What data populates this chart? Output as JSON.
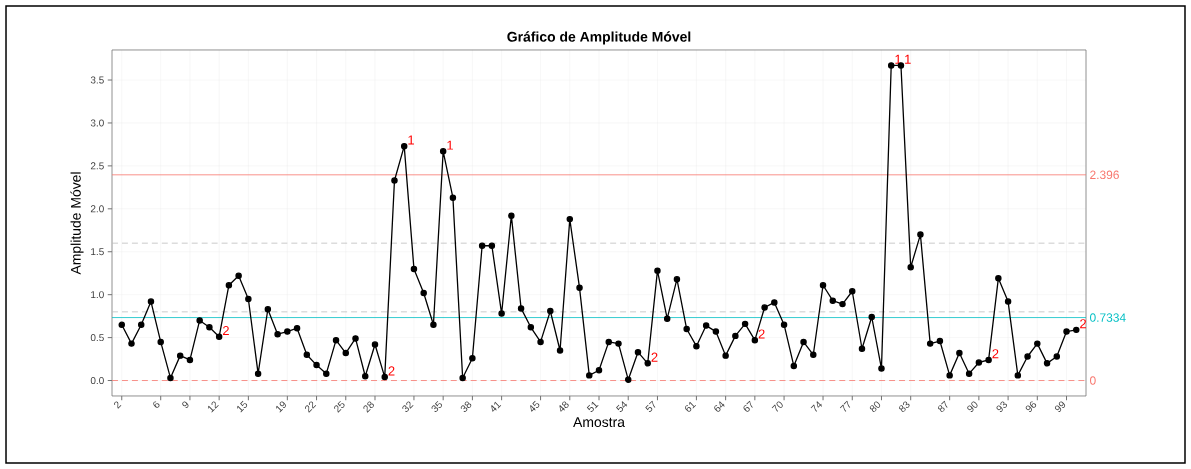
{
  "chart_data": {
    "type": "line",
    "title": "Gráfico de Amplitude Móvel",
    "xlabel": "Amostra",
    "ylabel": "Amplitude Móvel",
    "x": [
      2,
      3,
      4,
      5,
      6,
      7,
      8,
      9,
      10,
      11,
      12,
      13,
      14,
      15,
      16,
      17,
      18,
      19,
      20,
      21,
      22,
      23,
      24,
      25,
      26,
      27,
      28,
      29,
      30,
      31,
      32,
      33,
      34,
      35,
      36,
      37,
      38,
      39,
      40,
      41,
      42,
      43,
      44,
      45,
      46,
      47,
      48,
      49,
      50,
      51,
      52,
      53,
      54,
      55,
      56,
      57,
      58,
      59,
      60,
      61,
      62,
      63,
      64,
      65,
      66,
      67,
      68,
      69,
      70,
      71,
      72,
      73,
      74,
      75,
      76,
      77,
      78,
      79,
      80,
      81,
      82,
      83,
      84,
      85,
      86,
      87,
      88,
      89,
      90,
      91,
      92,
      93,
      94,
      95,
      96,
      97,
      98,
      99,
      100
    ],
    "series": [
      {
        "color": "#000000",
        "values": [
          0.65,
          0.43,
          0.65,
          0.92,
          0.45,
          0.03,
          0.29,
          0.24,
          0.7,
          0.62,
          0.51,
          1.11,
          1.22,
          0.95,
          0.08,
          0.83,
          0.54,
          0.57,
          0.61,
          0.3,
          0.18,
          0.08,
          0.47,
          0.32,
          0.49,
          0.05,
          0.42,
          0.04,
          2.33,
          2.73,
          1.3,
          1.02,
          0.65,
          2.67,
          2.13,
          0.03,
          0.26,
          1.57,
          1.57,
          0.78,
          1.92,
          0.84,
          0.62,
          0.45,
          0.81,
          0.35,
          1.88,
          1.08,
          0.06,
          0.12,
          0.45,
          0.43,
          0.01,
          0.33,
          0.2,
          1.28,
          0.72,
          1.18,
          0.6,
          0.4,
          0.64,
          0.57,
          0.29,
          0.52,
          0.66,
          0.47,
          0.85,
          0.91,
          0.65,
          0.17,
          0.45,
          0.3,
          1.11,
          0.93,
          0.89,
          1.04,
          0.37,
          0.74,
          0.14,
          3.67,
          3.67,
          1.32,
          1.7,
          0.43,
          0.46,
          0.06,
          0.32,
          0.08,
          0.21,
          0.24,
          1.19,
          0.92,
          0.06,
          0.28,
          0.43,
          0.2,
          0.28,
          0.57,
          0.59
        ]
      }
    ],
    "xlim": [
      1,
      101
    ],
    "ylim": [
      -0.18,
      3.85
    ],
    "xticks": [
      2,
      6,
      9,
      12,
      15,
      19,
      22,
      25,
      28,
      32,
      35,
      38,
      41,
      45,
      48,
      51,
      54,
      57,
      61,
      64,
      67,
      70,
      74,
      77,
      80,
      83,
      87,
      90,
      93,
      96,
      99
    ],
    "yticks": [
      {
        "value": 0,
        "label": "0.0"
      },
      {
        "value": 0.5,
        "label": "0.5"
      },
      {
        "value": 1,
        "label": "1.0"
      },
      {
        "value": 1.5,
        "label": "1.5"
      },
      {
        "value": 2,
        "label": "2.0"
      },
      {
        "value": 2.5,
        "label": "2.5"
      },
      {
        "value": 3,
        "label": "3.0"
      },
      {
        "value": 3.5,
        "label": "3.5"
      }
    ],
    "ref_lines": [
      {
        "axis": "y",
        "value": 1.6,
        "color": "#bebebe",
        "line_style": "dashed"
      },
      {
        "axis": "y",
        "value": 0.8,
        "color": "#bebebe",
        "line_style": "dashed"
      },
      {
        "axis": "y",
        "value": 2.396,
        "label": "2.396",
        "color": "#f8766d",
        "line_style": "solid"
      },
      {
        "axis": "y",
        "value": 0.7334,
        "label": "0.7334",
        "color": "#00bfc4",
        "line_style": "solid"
      },
      {
        "axis": "y",
        "value": 0,
        "label": "0",
        "color": "#f8766d",
        "line_style": "dashed"
      }
    ],
    "annotations": [
      {
        "text": "2",
        "x": 12,
        "y": 0.51
      },
      {
        "text": "2",
        "x": 29,
        "y": 0.04
      },
      {
        "text": "1",
        "x": 31,
        "y": 2.73
      },
      {
        "text": "1",
        "x": 35,
        "y": 2.67
      },
      {
        "text": "2",
        "x": 56,
        "y": 0.2
      },
      {
        "text": "2",
        "x": 67,
        "y": 0.47
      },
      {
        "text": "1",
        "x": 81,
        "y": 3.67
      },
      {
        "text": "1",
        "x": 82,
        "y": 3.67
      },
      {
        "text": "2",
        "x": 91,
        "y": 0.24
      },
      {
        "text": "2",
        "x": 100,
        "y": 0.59
      }
    ],
    "grid": true,
    "marker": "circle",
    "line_style": "solid"
  }
}
